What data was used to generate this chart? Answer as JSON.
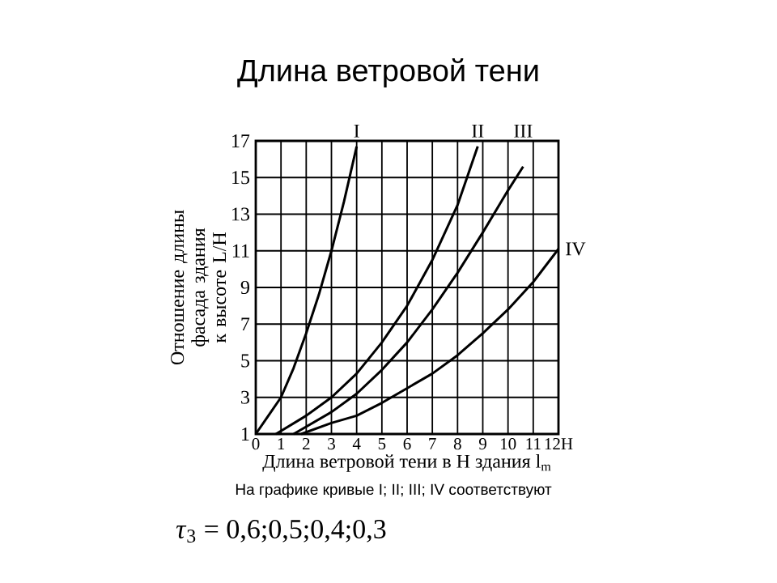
{
  "chart_data": {
    "type": "line",
    "title": "Длина ветровой тени",
    "xlabel": "Длина ветровой тени в Н здания l$_{m}$",
    "ylabel": "Отношение длины фасада здания к высоте L/H",
    "xlim": [
      0,
      12
    ],
    "ylim": [
      1,
      17
    ],
    "xticks": [
      0,
      1,
      2,
      3,
      4,
      5,
      6,
      7,
      8,
      9,
      10,
      11,
      {
        "value": 12,
        "label": "12H"
      }
    ],
    "yticks": [
      1,
      3,
      5,
      7,
      9,
      11,
      13,
      15,
      17
    ],
    "grid": true,
    "legend": false,
    "marker": "none",
    "line_style": "solid",
    "series": [
      {
        "name": "I",
        "color": "#000000",
        "x": [
          0,
          0.5,
          1,
          1.5,
          2,
          2.5,
          3,
          3.5,
          4
        ],
        "values": [
          1,
          2,
          3,
          4.6,
          6.5,
          8.6,
          11,
          13.7,
          16.7
        ]
      },
      {
        "name": "II",
        "color": "#000000",
        "x": [
          0.8,
          2,
          3,
          4,
          5,
          6,
          7,
          8,
          8.8
        ],
        "values": [
          1,
          2,
          3,
          4.3,
          6,
          8,
          10.5,
          13.5,
          16.7
        ]
      },
      {
        "name": "III",
        "color": "#000000",
        "x": [
          1.5,
          3,
          4,
          5,
          6,
          7,
          8,
          9,
          10,
          10.6
        ],
        "values": [
          1,
          2.2,
          3.2,
          4.5,
          6,
          7.8,
          9.8,
          12,
          14.3,
          15.6
        ]
      },
      {
        "name": "IV",
        "color": "#000000",
        "x": [
          1.8,
          3,
          4,
          5,
          6,
          7,
          8,
          9,
          10,
          11,
          12
        ],
        "values": [
          1,
          1.6,
          2,
          2.7,
          3.5,
          4.3,
          5.3,
          6.5,
          7.8,
          9.3,
          11.1
        ]
      }
    ],
    "annotations": [
      "На графике кривые I; II; III; IV соответствуют",
      "*τ*$_{3}$ = 0,6;0,5;0,4;0,3"
    ]
  }
}
